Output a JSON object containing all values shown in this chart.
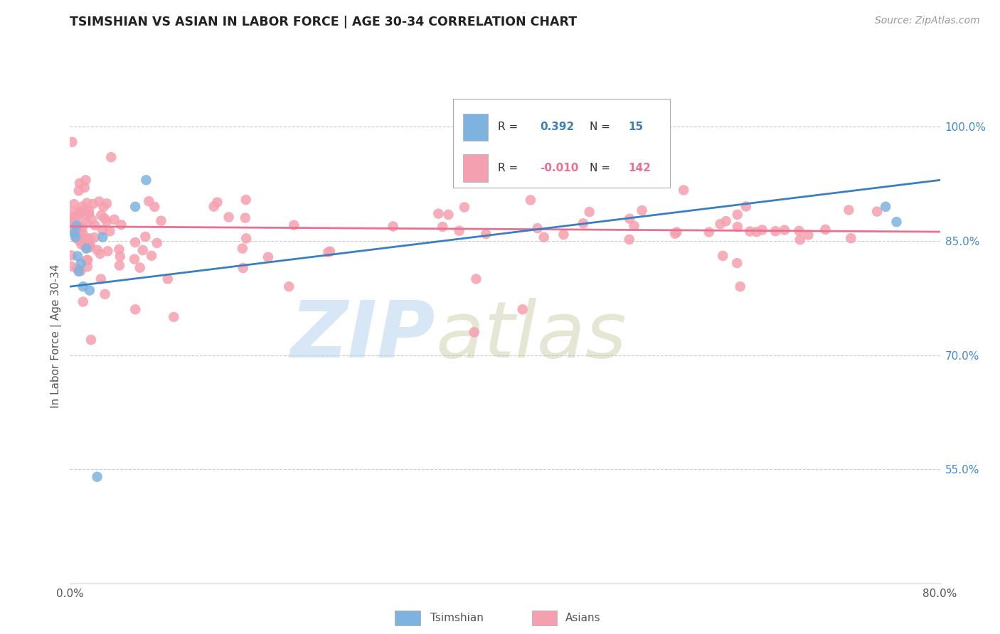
{
  "title": "TSIMSHIAN VS ASIAN IN LABOR FORCE | AGE 30-34 CORRELATION CHART",
  "source": "Source: ZipAtlas.com",
  "ylabel": "In Labor Force | Age 30-34",
  "xlim": [
    0.0,
    0.8
  ],
  "ylim": [
    0.4,
    1.05
  ],
  "x_tick_positions": [
    0.0,
    0.1,
    0.2,
    0.3,
    0.4,
    0.5,
    0.6,
    0.7,
    0.8
  ],
  "x_tick_labels": [
    "0.0%",
    "",
    "",
    "",
    "",
    "",
    "",
    "",
    "80.0%"
  ],
  "y_ticks_right": [
    0.55,
    0.7,
    0.85,
    1.0
  ],
  "y_tick_labels_right": [
    "55.0%",
    "70.0%",
    "85.0%",
    "100.0%"
  ],
  "grid_color": "#cccccc",
  "background_color": "#ffffff",
  "tsimshian_color": "#7EB3E0",
  "asian_color": "#F5A0B0",
  "tsimshian_line_color": "#3A7FC1",
  "asian_line_color": "#E87090",
  "legend_r_tsimshian": "0.392",
  "legend_n_tsimshian": "15",
  "legend_r_asian": "-0.010",
  "legend_n_asian": "142",
  "tsimshian_x": [
    0.004,
    0.005,
    0.006,
    0.007,
    0.008,
    0.01,
    0.012,
    0.015,
    0.018,
    0.025,
    0.03,
    0.06,
    0.07,
    0.75,
    0.76
  ],
  "tsimshian_y": [
    0.86,
    0.855,
    0.87,
    0.83,
    0.81,
    0.82,
    0.79,
    0.84,
    0.785,
    0.54,
    0.855,
    0.895,
    0.93,
    0.895,
    0.875
  ],
  "tsim_line_x": [
    0.0,
    0.8
  ],
  "tsim_line_y": [
    0.79,
    0.93
  ],
  "asian_line_x": [
    0.0,
    0.8
  ],
  "asian_line_y": [
    0.869,
    0.862
  ]
}
